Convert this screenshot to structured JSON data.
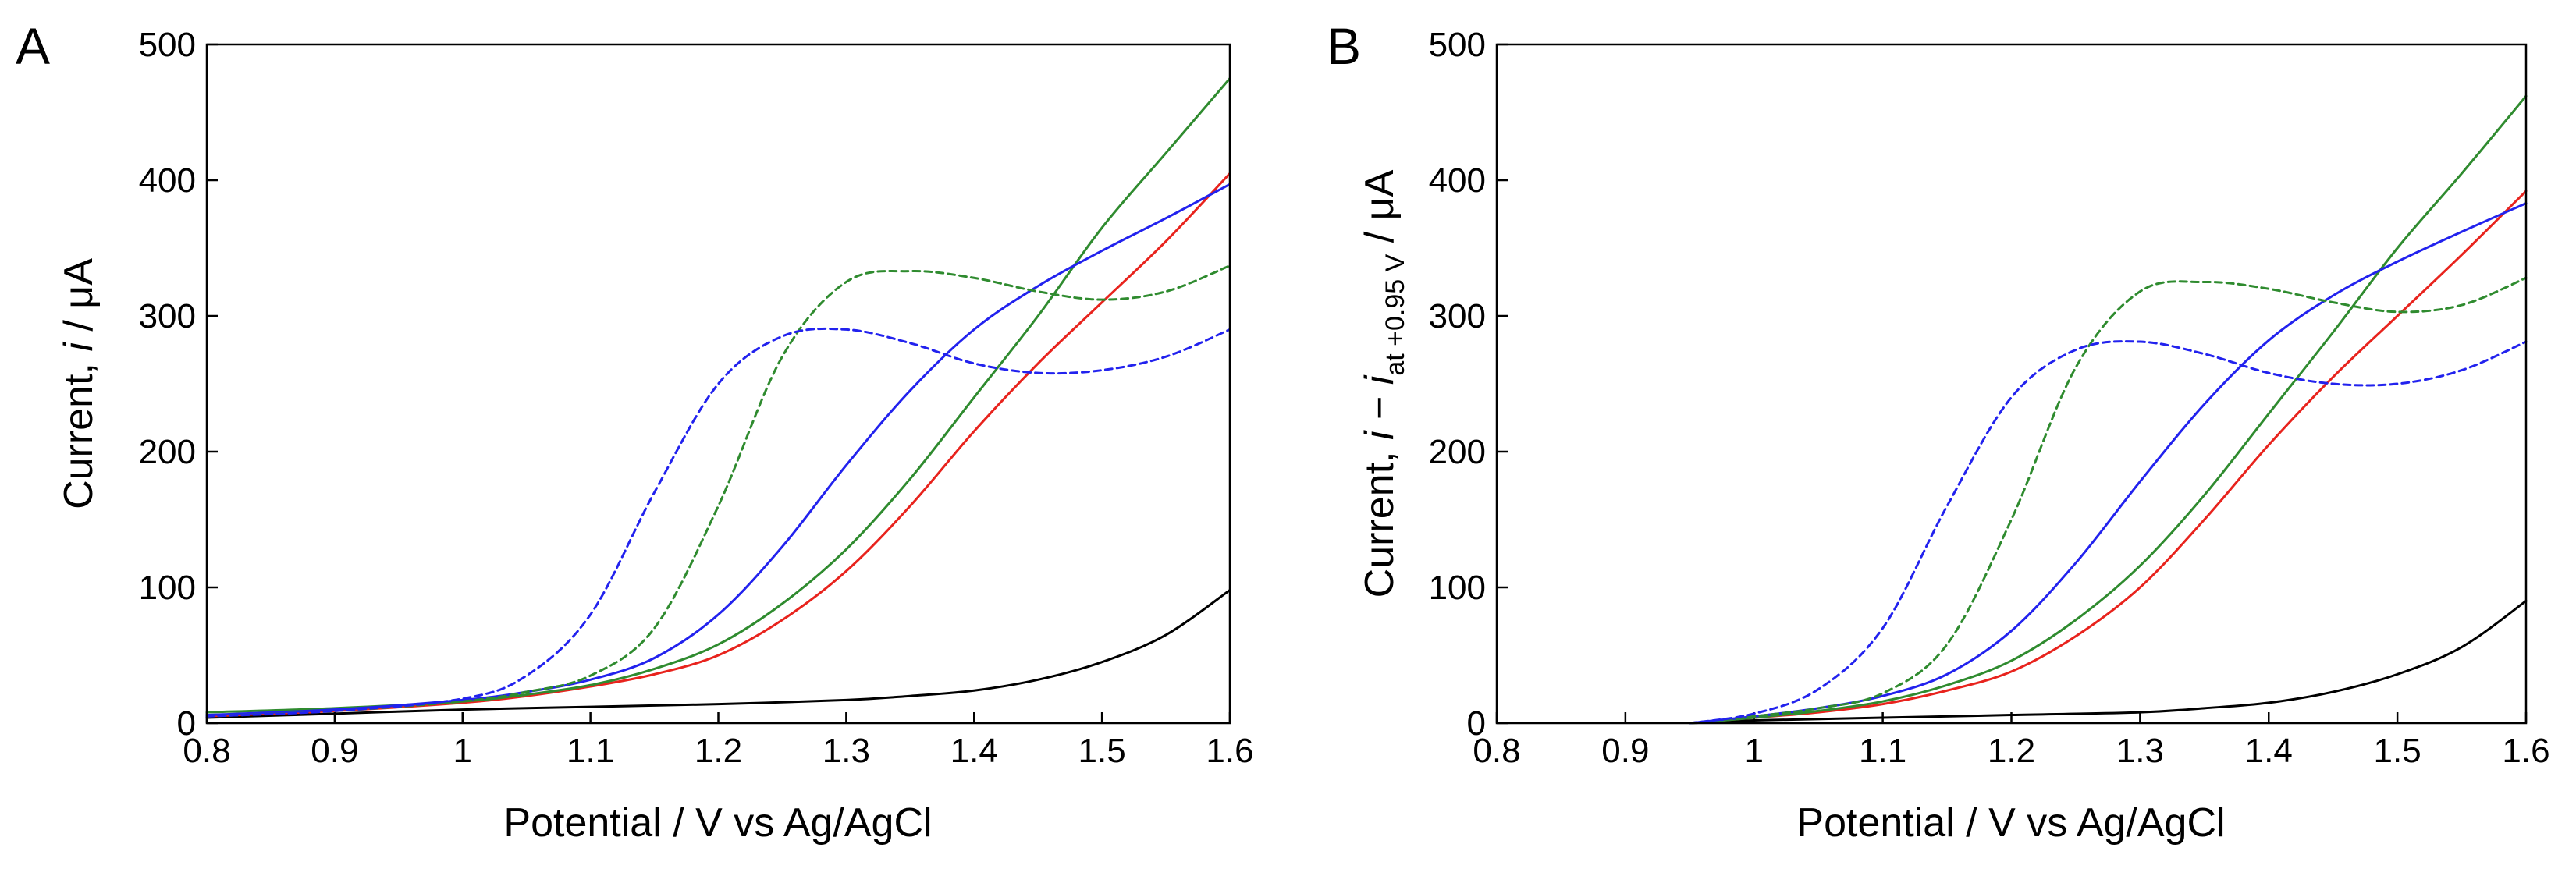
{
  "colors": {
    "black": "#000000",
    "red": "#e8231d",
    "green": "#2f8b2f",
    "blue": "#2222ee"
  },
  "chart_data": [
    {
      "type": "line",
      "panel": "A",
      "xlabel": "Potential / V vs Ag/AgCl",
      "ylabel_parts": [
        "Current, ",
        "i",
        " / μA"
      ],
      "xlim": [
        0.8,
        1.6
      ],
      "ylim": [
        0,
        500
      ],
      "xticks": [
        0.8,
        0.9,
        1,
        1.1,
        1.2,
        1.3,
        1.4,
        1.5,
        1.6
      ],
      "xtick_labels": [
        "0.8",
        "0.9",
        "1",
        "1.1",
        "1.2",
        "1.3",
        "1.4",
        "1.5",
        "1.6"
      ],
      "yticks": [
        0,
        100,
        200,
        300,
        400,
        500
      ],
      "ytick_labels": [
        "0",
        "100",
        "200",
        "300",
        "400",
        "500"
      ],
      "grid": false,
      "series": [
        {
          "color": "#000000",
          "dash": "solid",
          "x": [
            0.8,
            0.9,
            1.0,
            1.1,
            1.2,
            1.3,
            1.35,
            1.4,
            1.45,
            1.5,
            1.55,
            1.6
          ],
          "y": [
            4,
            7,
            10,
            12,
            14,
            17,
            20,
            24,
            32,
            45,
            65,
            98
          ]
        },
        {
          "color": "#e8231d",
          "dash": "solid",
          "x": [
            0.8,
            0.9,
            1.0,
            1.05,
            1.1,
            1.15,
            1.2,
            1.25,
            1.3,
            1.35,
            1.4,
            1.45,
            1.5,
            1.55,
            1.6
          ],
          "y": [
            5,
            9,
            15,
            20,
            27,
            36,
            50,
            76,
            112,
            160,
            215,
            265,
            310,
            355,
            405
          ]
        },
        {
          "color": "#2f8b2f",
          "dash": "solid",
          "x": [
            0.8,
            0.9,
            1.0,
            1.05,
            1.1,
            1.15,
            1.2,
            1.25,
            1.3,
            1.35,
            1.4,
            1.45,
            1.5,
            1.55,
            1.6
          ],
          "y": [
            8,
            11,
            16,
            21,
            28,
            40,
            58,
            88,
            128,
            180,
            240,
            300,
            365,
            420,
            475
          ]
        },
        {
          "color": "#2222ee",
          "dash": "solid",
          "x": [
            0.8,
            0.9,
            1.0,
            1.05,
            1.1,
            1.15,
            1.2,
            1.25,
            1.3,
            1.35,
            1.4,
            1.45,
            1.5,
            1.55,
            1.6
          ],
          "y": [
            6,
            10,
            17,
            23,
            32,
            48,
            80,
            130,
            190,
            245,
            290,
            322,
            348,
            372,
            397
          ]
        },
        {
          "color": "#2f8b2f",
          "dash": "dashed",
          "x": [
            0.8,
            0.9,
            1.0,
            1.05,
            1.1,
            1.15,
            1.2,
            1.25,
            1.3,
            1.35,
            1.4,
            1.45,
            1.5,
            1.55,
            1.6
          ],
          "y": [
            5,
            9,
            16,
            23,
            35,
            70,
            160,
            270,
            325,
            333,
            328,
            318,
            312,
            318,
            337
          ]
        },
        {
          "color": "#2222ee",
          "dash": "dashed",
          "x": [
            0.8,
            0.9,
            1.0,
            1.05,
            1.1,
            1.15,
            1.2,
            1.25,
            1.3,
            1.35,
            1.4,
            1.45,
            1.5,
            1.55,
            1.6
          ],
          "y": [
            5,
            9,
            18,
            35,
            80,
            170,
            250,
            285,
            290,
            280,
            265,
            258,
            260,
            270,
            290
          ]
        }
      ]
    },
    {
      "type": "line",
      "panel": "B",
      "xlabel": "Potential / V vs Ag/AgCl",
      "ylabel_parts": [
        "Current, ",
        "i",
        " − ",
        "i",
        "at +0.95 V",
        " / μA"
      ],
      "xlim": [
        0.8,
        1.6
      ],
      "ylim": [
        0,
        500
      ],
      "xticks": [
        0.8,
        0.9,
        1,
        1.1,
        1.2,
        1.3,
        1.4,
        1.5,
        1.6
      ],
      "xtick_labels": [
        "0.8",
        "0.9",
        "1",
        "1.1",
        "1.2",
        "1.3",
        "1.4",
        "1.5",
        "1.6"
      ],
      "yticks": [
        0,
        100,
        200,
        300,
        400,
        500
      ],
      "ytick_labels": [
        "0",
        "100",
        "200",
        "300",
        "400",
        "500"
      ],
      "grid": false,
      "series": [
        {
          "color": "#000000",
          "dash": "solid",
          "x": [
            0.95,
            1.0,
            1.1,
            1.2,
            1.3,
            1.35,
            1.4,
            1.45,
            1.5,
            1.55,
            1.6
          ],
          "y": [
            0,
            2,
            4,
            6,
            8,
            11,
            15,
            23,
            36,
            56,
            90
          ]
        },
        {
          "color": "#e8231d",
          "dash": "solid",
          "x": [
            0.95,
            1.0,
            1.05,
            1.1,
            1.15,
            1.2,
            1.25,
            1.3,
            1.35,
            1.4,
            1.45,
            1.5,
            1.55,
            1.6
          ],
          "y": [
            0,
            4,
            8,
            14,
            24,
            38,
            64,
            100,
            150,
            205,
            255,
            300,
            345,
            392
          ]
        },
        {
          "color": "#2f8b2f",
          "dash": "solid",
          "x": [
            0.95,
            1.0,
            1.05,
            1.1,
            1.15,
            1.2,
            1.25,
            1.3,
            1.35,
            1.4,
            1.45,
            1.5,
            1.55,
            1.6
          ],
          "y": [
            0,
            4,
            9,
            16,
            28,
            46,
            76,
            116,
            168,
            228,
            288,
            350,
            405,
            462
          ]
        },
        {
          "color": "#2222ee",
          "dash": "solid",
          "x": [
            0.95,
            1.0,
            1.05,
            1.1,
            1.15,
            1.2,
            1.25,
            1.3,
            1.35,
            1.4,
            1.45,
            1.5,
            1.55,
            1.6
          ],
          "y": [
            0,
            5,
            11,
            20,
            36,
            68,
            118,
            178,
            235,
            282,
            315,
            340,
            362,
            383
          ]
        },
        {
          "color": "#2f8b2f",
          "dash": "dashed",
          "x": [
            0.95,
            1.0,
            1.05,
            1.1,
            1.15,
            1.2,
            1.25,
            1.3,
            1.35,
            1.4,
            1.45,
            1.5,
            1.55,
            1.6
          ],
          "y": [
            0,
            5,
            11,
            22,
            58,
            150,
            262,
            318,
            325,
            320,
            310,
            303,
            308,
            328
          ]
        },
        {
          "color": "#2222ee",
          "dash": "dashed",
          "x": [
            0.95,
            1.0,
            1.05,
            1.1,
            1.15,
            1.2,
            1.25,
            1.3,
            1.35,
            1.4,
            1.45,
            1.5,
            1.55,
            1.6
          ],
          "y": [
            0,
            7,
            25,
            70,
            160,
            240,
            275,
            281,
            272,
            258,
            250,
            250,
            260,
            281
          ]
        }
      ]
    }
  ]
}
